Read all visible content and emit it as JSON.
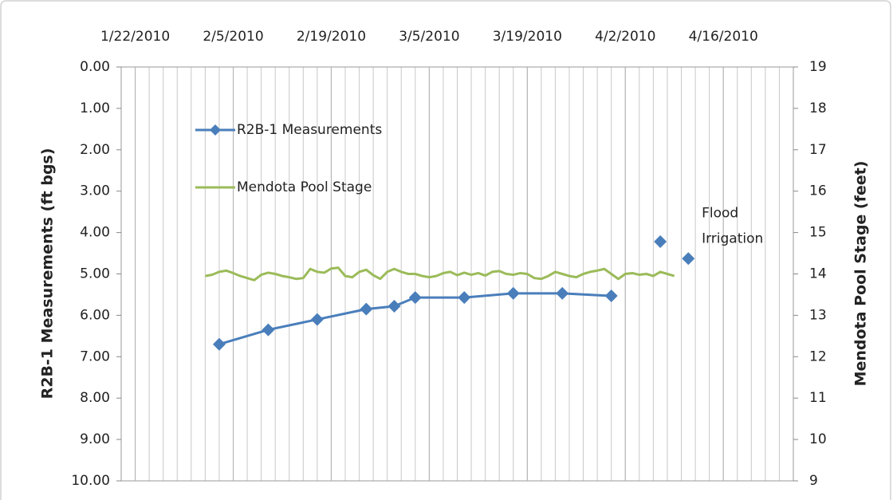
{
  "chart_data": {
    "type": "line",
    "y_label": "R2B-1 Measurements (ft bgs)",
    "y2_label": "Mendota Pool Stage (feet)",
    "xlim": [
      "1/20/2010",
      "4/26/2010"
    ],
    "xticks": [
      "1/22/2010",
      "2/5/2010",
      "2/19/2010",
      "3/5/2010",
      "3/19/2010",
      "4/2/2010",
      "4/16/2010"
    ],
    "x_axis_position": "top",
    "grid": "x-minor",
    "ylim": [
      10,
      0
    ],
    "yticks": [
      {
        "value": 0,
        "label": "0.00"
      },
      {
        "value": 1,
        "label": "1.00"
      },
      {
        "value": 2,
        "label": "2.00"
      },
      {
        "value": 3,
        "label": "3.00"
      },
      {
        "value": 4,
        "label": "4.00"
      },
      {
        "value": 5,
        "label": "5.00"
      },
      {
        "value": 6,
        "label": "6.00"
      },
      {
        "value": 7,
        "label": "7.00"
      },
      {
        "value": 8,
        "label": "8.00"
      },
      {
        "value": 9,
        "label": "9.00"
      },
      {
        "value": 10,
        "label": "10.00"
      }
    ],
    "y2lim": [
      9,
      19
    ],
    "y2ticks": [
      9,
      10,
      11,
      12,
      13,
      14,
      15,
      16,
      17,
      18,
      19
    ],
    "legend": "upper left",
    "annotation": {
      "lines": [
        "Flood",
        "Irrigation"
      ],
      "x": "4/12/2010",
      "y": 4.0
    },
    "series": [
      {
        "name": "R2B-1 Measurements",
        "color": "#4a7ebb",
        "marker": "diamond",
        "axis": "y",
        "x": [
          "2/3/2010",
          "2/10/2010",
          "2/17/2010",
          "2/24/2010",
          "2/28/2010",
          "3/3/2010",
          "3/10/2010",
          "3/17/2010",
          "3/24/2010",
          "3/31/2010",
          "4/4/2010",
          "4/7/2010",
          "4/9/2010",
          "4/11/2010"
        ],
        "values": [
          6.7,
          6.35,
          6.1,
          5.85,
          5.78,
          5.57,
          5.57,
          5.47,
          5.47,
          5.53,
          null,
          4.22,
          null,
          4.63
        ]
      },
      {
        "name": "Mendota Pool Stage",
        "color": "#9bbb59",
        "axis": "y2",
        "x": [
          "2/1/2010",
          "2/2/2010",
          "2/3/2010",
          "2/4/2010",
          "2/5/2010",
          "2/6/2010",
          "2/7/2010",
          "2/8/2010",
          "2/9/2010",
          "2/10/2010",
          "2/11/2010",
          "2/12/2010",
          "2/13/2010",
          "2/14/2010",
          "2/15/2010",
          "2/16/2010",
          "2/17/2010",
          "2/18/2010",
          "2/19/2010",
          "2/20/2010",
          "2/21/2010",
          "2/22/2010",
          "2/23/2010",
          "2/24/2010",
          "2/25/2010",
          "2/26/2010",
          "2/27/2010",
          "2/28/2010",
          "3/1/2010",
          "3/2/2010",
          "3/3/2010",
          "3/4/2010",
          "3/5/2010",
          "3/6/2010",
          "3/7/2010",
          "3/8/2010",
          "3/9/2010",
          "3/10/2010",
          "3/11/2010",
          "3/12/2010",
          "3/13/2010",
          "3/14/2010",
          "3/15/2010",
          "3/16/2010",
          "3/17/2010",
          "3/18/2010",
          "3/19/2010",
          "3/20/2010",
          "3/21/2010",
          "3/22/2010",
          "3/23/2010",
          "3/24/2010",
          "3/25/2010",
          "3/26/2010",
          "3/27/2010",
          "3/28/2010",
          "3/29/2010",
          "3/30/2010",
          "3/31/2010",
          "4/1/2010",
          "4/2/2010",
          "4/3/2010",
          "4/4/2010",
          "4/5/2010",
          "4/6/2010",
          "4/7/2010",
          "4/8/2010",
          "4/9/2010"
        ],
        "values": [
          13.95,
          13.98,
          14.05,
          14.08,
          14.02,
          13.95,
          13.9,
          13.85,
          13.98,
          14.03,
          14.0,
          13.95,
          13.92,
          13.88,
          13.9,
          14.12,
          14.05,
          14.03,
          14.13,
          14.15,
          13.95,
          13.92,
          14.05,
          14.1,
          13.97,
          13.88,
          14.05,
          14.12,
          14.05,
          14.0,
          14.0,
          13.95,
          13.92,
          13.95,
          14.02,
          14.05,
          13.97,
          14.03,
          13.98,
          14.02,
          13.96,
          14.05,
          14.07,
          14.0,
          13.98,
          14.02,
          14.0,
          13.9,
          13.88,
          13.95,
          14.05,
          14.0,
          13.95,
          13.92,
          14.0,
          14.05,
          14.08,
          14.12,
          14.0,
          13.88,
          14.0,
          14.02,
          13.98,
          14.0,
          13.95,
          14.05,
          14.0,
          13.95
        ]
      }
    ]
  }
}
